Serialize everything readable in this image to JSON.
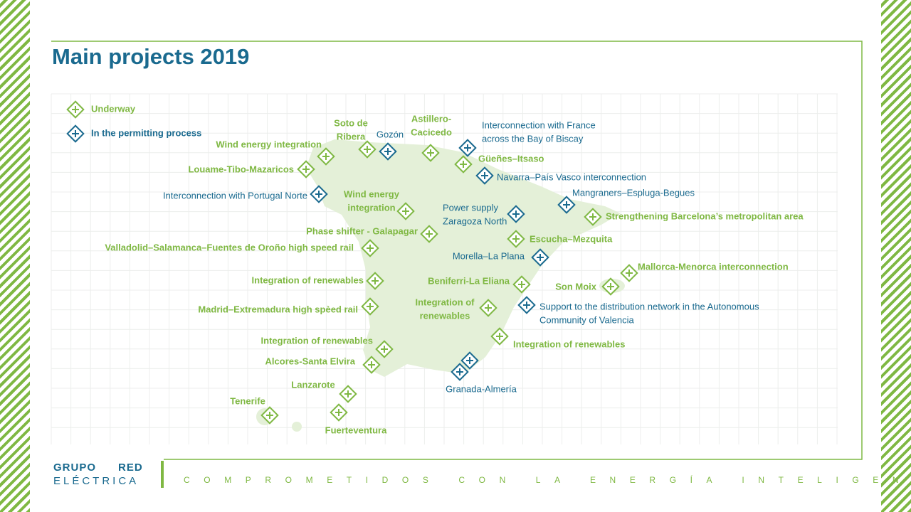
{
  "title": "Main projects 2019",
  "legend": [
    {
      "label": "Underway",
      "status": "underway"
    },
    {
      "label": "In the permitting process",
      "status": "permitting"
    }
  ],
  "projects": [
    {
      "label": [
        "Wind energy integration"
      ],
      "status": "underway"
    },
    {
      "label": [
        "Louame-Tibo-Mazaricos"
      ],
      "status": "underway"
    },
    {
      "label": [
        "Interconnection with Portugal Norte"
      ],
      "status": "permitting"
    },
    {
      "label": [
        "Soto de",
        "Ribera"
      ],
      "status": "underway"
    },
    {
      "label": [
        "Gozón"
      ],
      "status": "permitting"
    },
    {
      "label": [
        "Astillero-",
        "Cacicedo"
      ],
      "status": "underway"
    },
    {
      "label": [
        "Interconnection with France",
        "across the Bay of Biscay"
      ],
      "status": "permitting"
    },
    {
      "label": [
        "Güeñes–Itsaso"
      ],
      "status": "underway"
    },
    {
      "label": [
        "Navarra–País Vasco interconnection"
      ],
      "status": "permitting"
    },
    {
      "label": [
        "Mangraners–Espluga-Begues"
      ],
      "status": "permitting"
    },
    {
      "label": [
        "Strengthening Barcelona’s metropolitan area"
      ],
      "status": "underway"
    },
    {
      "label": [
        "Wind energy",
        "integration"
      ],
      "status": "underway"
    },
    {
      "label": [
        "Power supply",
        "Zaragoza North"
      ],
      "status": "permitting"
    },
    {
      "label": [
        "Phase shifter - Galapagar"
      ],
      "status": "underway"
    },
    {
      "label": [
        "Escucha–Mezquita"
      ],
      "status": "underway"
    },
    {
      "label": [
        "Valladolid–Salamanca–Fuentes de Oroño high speed rail"
      ],
      "status": "underway"
    },
    {
      "label": [
        "Morella–La Plana"
      ],
      "status": "permitting"
    },
    {
      "label": [
        "Mallorca-Menorca interconnection"
      ],
      "status": "underway"
    },
    {
      "label": [
        "Integration of renewables"
      ],
      "status": "underway"
    },
    {
      "label": [
        "Beniferri-La Eliana"
      ],
      "status": "underway"
    },
    {
      "label": [
        "Son Moix"
      ],
      "status": "underway"
    },
    {
      "label": [
        "Madrid–Extremadura high spèed rail"
      ],
      "status": "underway"
    },
    {
      "label": [
        "Integration of",
        "renewables"
      ],
      "status": "underway"
    },
    {
      "label": [
        "Support to the distribution network in the Autonomous",
        "Community of Valencia"
      ],
      "status": "permitting"
    },
    {
      "label": [
        "Integration of renewables"
      ],
      "status": "underway"
    },
    {
      "label": [
        "Integration of renewables"
      ],
      "status": "underway"
    },
    {
      "label": [
        "Alcores-Santa Elvira"
      ],
      "status": "underway"
    },
    {
      "label": [
        "Granada-Almería"
      ],
      "status": "permitting"
    },
    {
      "label": [
        "Lanzarote"
      ],
      "status": "underway"
    },
    {
      "label": [
        "Tenerife"
      ],
      "status": "underway"
    },
    {
      "label": [
        "Fuerteventura"
      ],
      "status": "underway"
    }
  ],
  "footer": {
    "logo": [
      "GRUPO",
      "RED",
      "ELÉCTRICA"
    ],
    "tagline": "COMPROMETIDOS CON LA ENERGÍA INTELIGENTE"
  }
}
